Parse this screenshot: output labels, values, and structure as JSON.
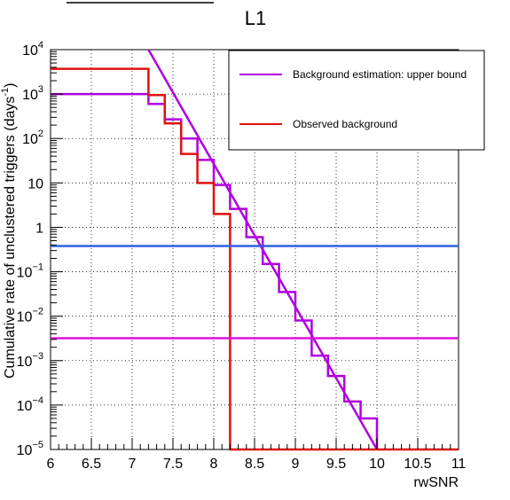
{
  "chart_data": {
    "type": "line",
    "title": "L1",
    "xlabel": "rwSNR",
    "ylabel": "Cumulative rate of unclustered triggers (days",
    "ylabel_exponent": "-1",
    "ylabel_suffix": ")",
    "xlim": [
      6,
      11
    ],
    "ylim": [
      1e-05,
      10000.0
    ],
    "y_scale": "log",
    "grid": true,
    "legend_position": "top-right",
    "x_ticks": [
      {
        "value": 6,
        "label": "6"
      },
      {
        "value": 6.5,
        "label": "6.5"
      },
      {
        "value": 7,
        "label": "7"
      },
      {
        "value": 7.5,
        "label": "7.5"
      },
      {
        "value": 8,
        "label": "8"
      },
      {
        "value": 8.5,
        "label": "8.5"
      },
      {
        "value": 9,
        "label": "9"
      },
      {
        "value": 9.5,
        "label": "9.5"
      },
      {
        "value": 10,
        "label": "10"
      },
      {
        "value": 10.5,
        "label": "10.5"
      },
      {
        "value": 11,
        "label": "11"
      }
    ],
    "y_ticks": [
      {
        "value": 10000.0,
        "base": "10",
        "exp": "4"
      },
      {
        "value": 1000.0,
        "base": "10",
        "exp": "3"
      },
      {
        "value": 100.0,
        "base": "10",
        "exp": "2"
      },
      {
        "value": 10,
        "base": "10",
        "exp": ""
      },
      {
        "value": 1,
        "base": "1",
        "exp": ""
      },
      {
        "value": 0.1,
        "base": "10",
        "exp": "−1"
      },
      {
        "value": 0.01,
        "base": "10",
        "exp": "−2"
      },
      {
        "value": 0.001,
        "base": "10",
        "exp": "−3"
      },
      {
        "value": 0.0001,
        "base": "10",
        "exp": "−4"
      },
      {
        "value": 1e-05,
        "base": "10",
        "exp": "−5"
      }
    ],
    "series": [
      {
        "name": "Background estimation: upper bound",
        "kind": "line",
        "color": "#b000e0",
        "x": [
          7.2,
          10.0
        ],
        "y": [
          10000,
          1e-05
        ]
      },
      {
        "kind": "step",
        "color": "#b000e0",
        "x": [
          6.0,
          7.2,
          7.4,
          7.6,
          7.8,
          8.0,
          8.2,
          8.4,
          8.6,
          8.8,
          9.0,
          9.2,
          9.4,
          9.6,
          9.8,
          10.0
        ],
        "y": [
          1000,
          600,
          270,
          100,
          33,
          9,
          2.6,
          0.6,
          0.15,
          0.035,
          0.008,
          0.0013,
          0.00045,
          0.00012,
          5e-05,
          1e-05
        ]
      },
      {
        "name": "Observed background",
        "kind": "step",
        "color": "#e01010",
        "x": [
          6.0,
          7.2,
          7.4,
          7.6,
          7.8,
          8.0,
          8.2,
          11.0
        ],
        "y": [
          3700,
          950,
          220,
          45,
          10,
          2.0,
          1e-05,
          1e-05
        ]
      },
      {
        "kind": "hline",
        "color": "#3060e0",
        "y": 0.38
      },
      {
        "kind": "hline",
        "color": "#e010e0",
        "y": 0.0032
      }
    ]
  }
}
